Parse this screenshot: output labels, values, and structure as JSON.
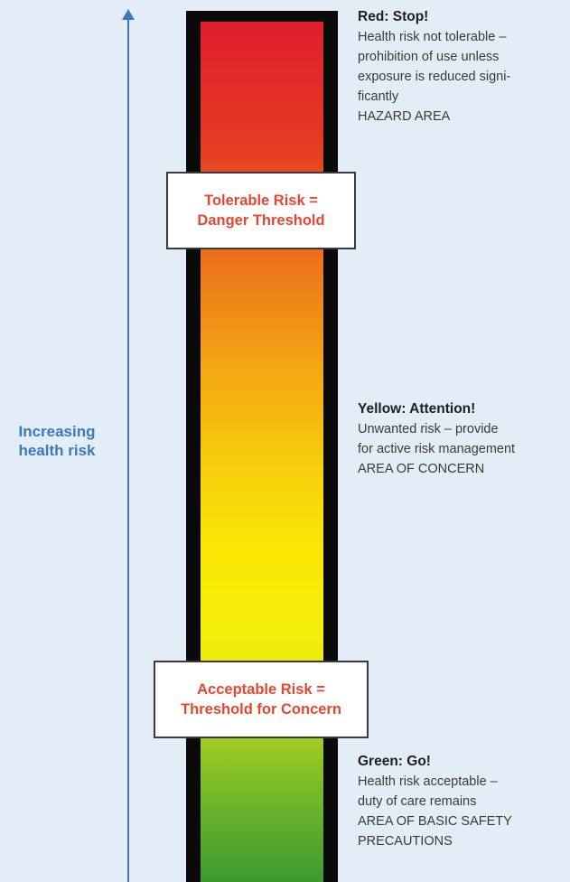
{
  "axis": {
    "label_line1": "Increasing",
    "label_line2": "health risk",
    "color": "#3b78c0"
  },
  "thresholds": {
    "upper": {
      "line1": "Tolerable Risk =",
      "line2": "Danger Threshold"
    },
    "lower": {
      "line1": "Acceptable Risk =",
      "line2": "Threshold for Concern"
    },
    "text_color": "#e8452f"
  },
  "zones": {
    "red": {
      "heading": "Red: Stop!",
      "lines": [
        "Health risk not tolerable –",
        "prohibition of use unless",
        "exposure is reduced signi-",
        "ficantly"
      ],
      "area": "HAZARD AREA",
      "color": "#e01e2b"
    },
    "yellow": {
      "heading": "Yellow: Attention!",
      "lines": [
        "Unwanted risk – provide",
        "for active risk management"
      ],
      "area": "AREA OF CONCERN",
      "color": "#fae805"
    },
    "green": {
      "heading": "Green: Go!",
      "lines": [
        "Health risk acceptable –",
        "duty of care remains"
      ],
      "area_lines": [
        "AREA OF BASIC SAFETY",
        "PRECAUTIONS"
      ],
      "color": "#3c9a31"
    }
  }
}
